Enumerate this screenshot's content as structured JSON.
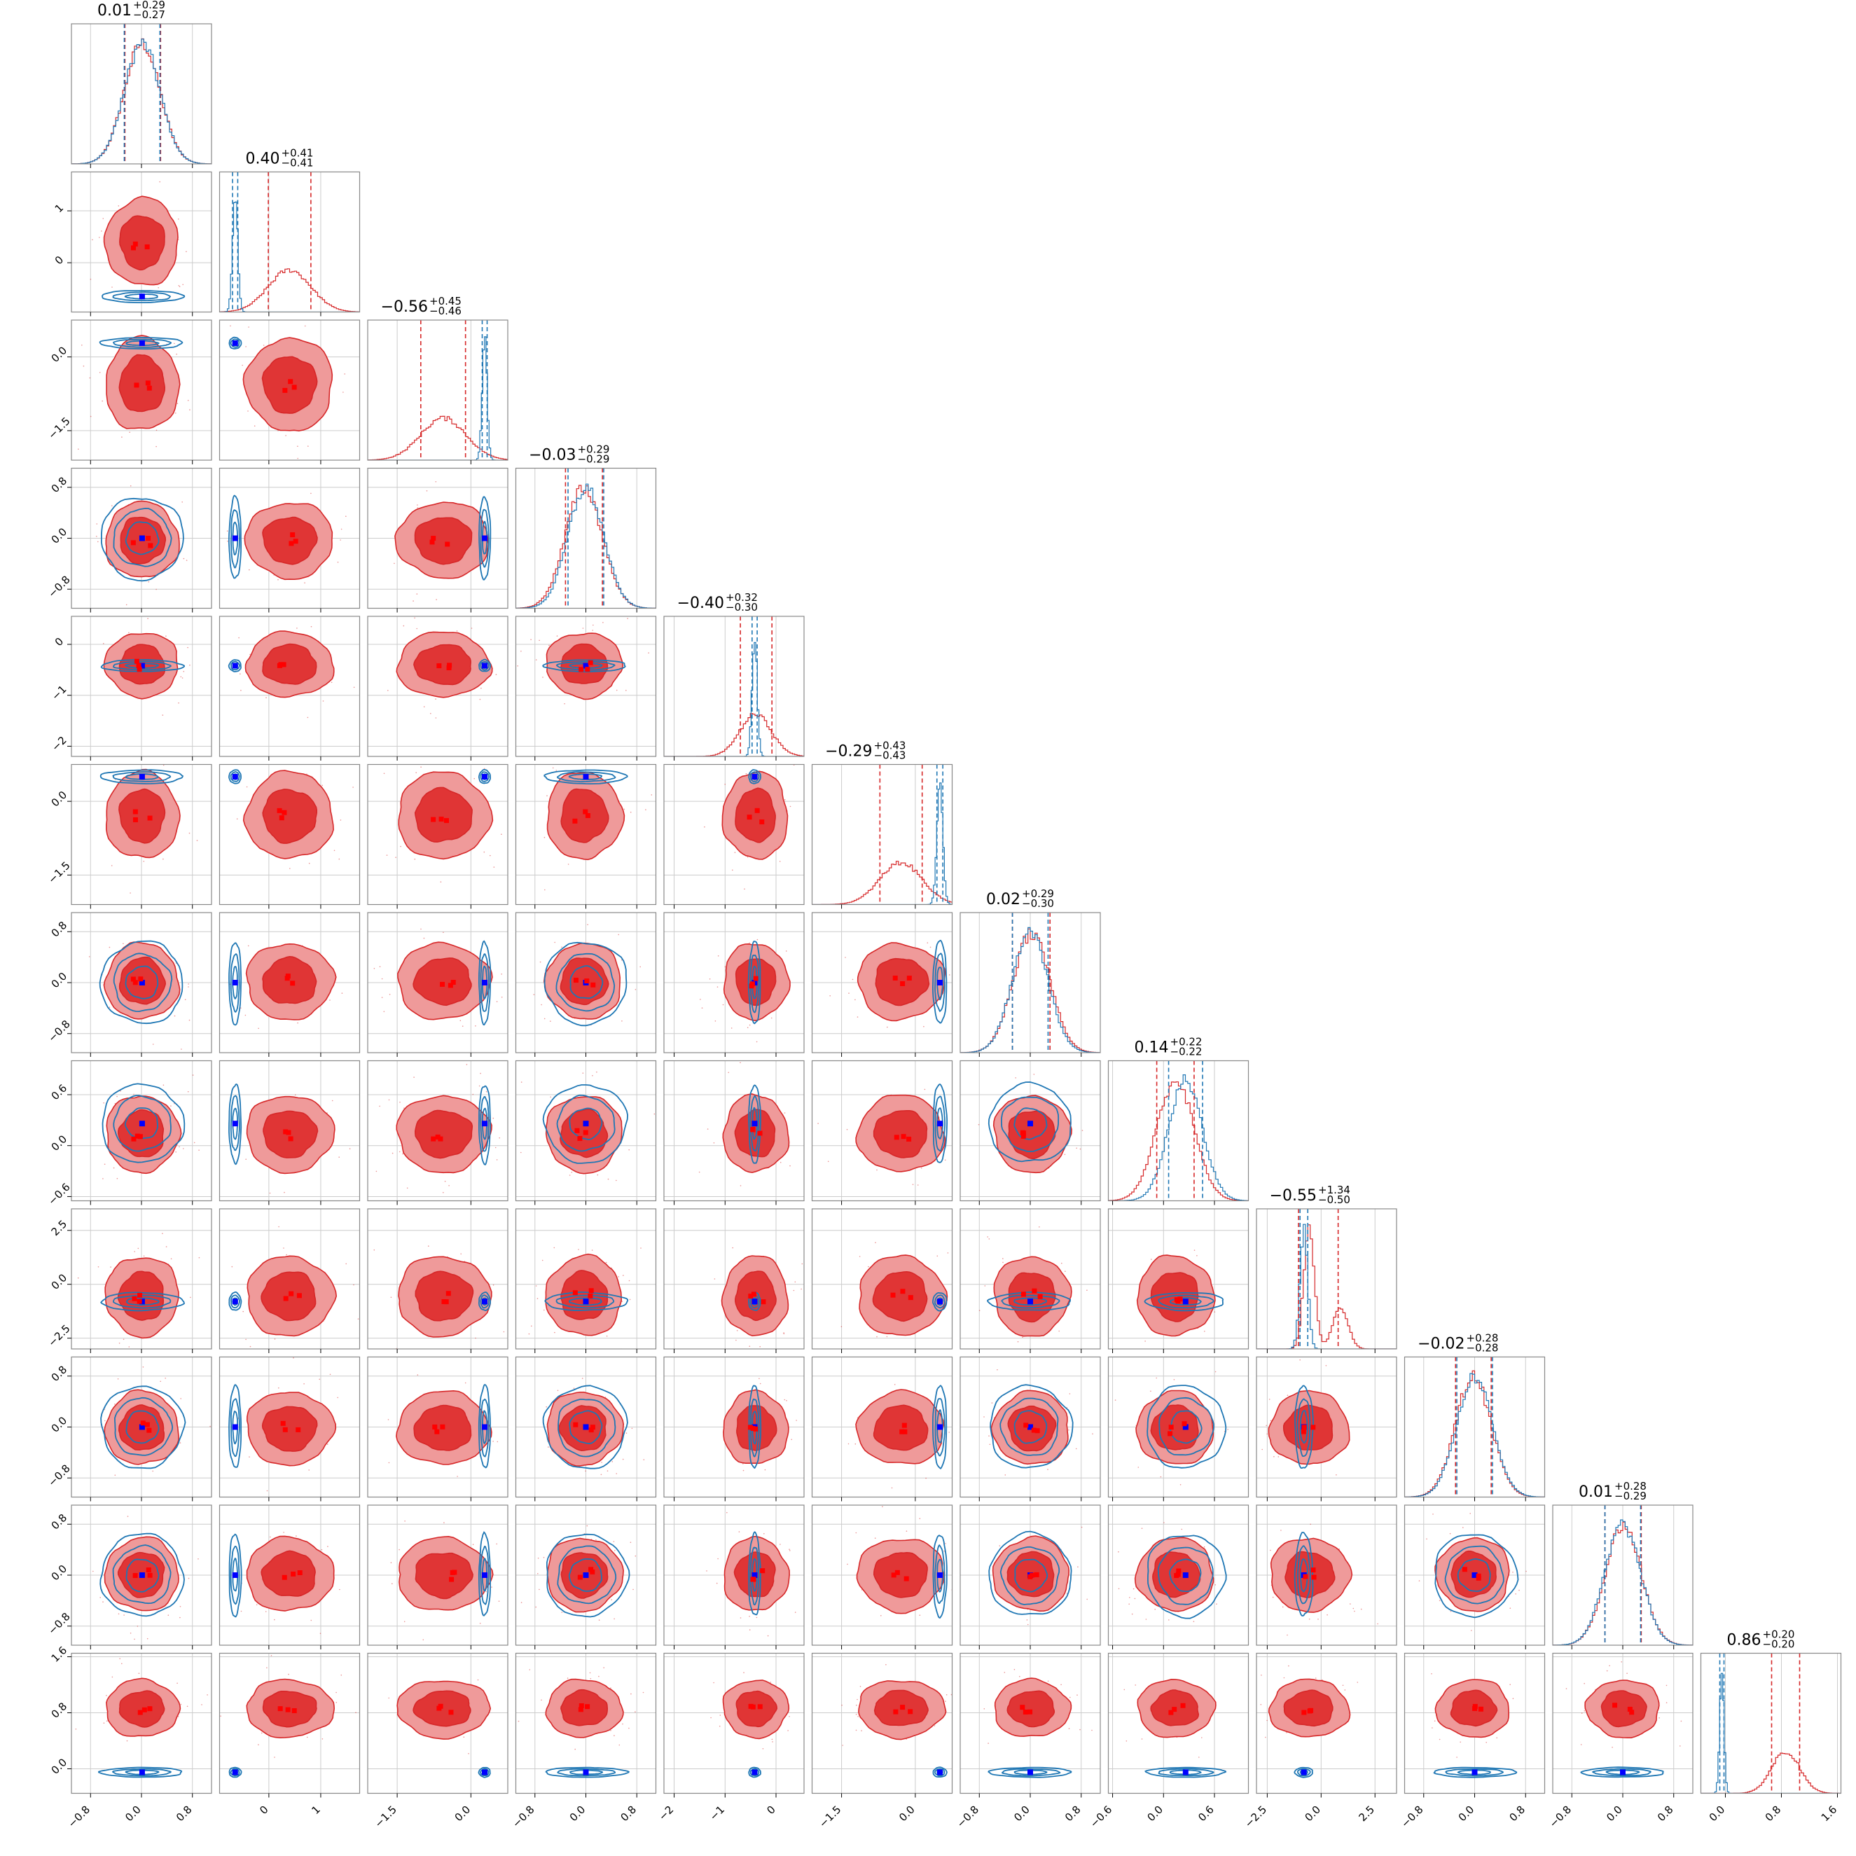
{
  "chart_data": {
    "type": "corner",
    "n_params": 12,
    "colors": {
      "red_fill_1": "#e03535",
      "red_fill_2": "#ef9a9a",
      "red_line": "#d62728",
      "blue_line": "#1f77b4",
      "blue_point": "#0000ff",
      "red_point": "#ff0000",
      "grid": "#cccccc",
      "frame": "#888888"
    },
    "params": [
      {
        "title": "0.01",
        "plus": "+0.29",
        "minus": "−0.27",
        "red_median": 0.01,
        "red_lo": 0.27,
        "red_hi": 0.29,
        "red_sigma": 0.28,
        "blue_median": 0.01,
        "blue_sigma": 0.28,
        "range": [
          -1.1,
          1.1
        ],
        "ticks": [
          -0.8,
          0.0,
          0.8
        ],
        "tick_labels": [
          "−0.8",
          "0.0",
          "0.8"
        ]
      },
      {
        "title": "0.40",
        "plus": "+0.41",
        "minus": "−0.41",
        "red_median": 0.4,
        "red_lo": 0.41,
        "red_hi": 0.41,
        "red_sigma": 0.41,
        "blue_median": -0.65,
        "blue_sigma": 0.05,
        "range": [
          -0.95,
          1.75
        ],
        "ticks": [
          0,
          1
        ],
        "tick_labels": [
          "0",
          "1"
        ]
      },
      {
        "title": "−0.56",
        "plus": "+0.45",
        "minus": "−0.46",
        "red_median": -0.56,
        "red_lo": 0.46,
        "red_hi": 0.45,
        "red_sigma": 0.46,
        "blue_median": 0.28,
        "blue_sigma": 0.05,
        "range": [
          -2.1,
          0.75
        ],
        "ticks": [
          -1.5,
          0.0
        ],
        "tick_labels": [
          "−1.5",
          "0.0"
        ]
      },
      {
        "title": "−0.03",
        "plus": "+0.29",
        "minus": "−0.29",
        "red_median": -0.03,
        "red_lo": 0.29,
        "red_hi": 0.29,
        "red_sigma": 0.29,
        "blue_median": 0.0,
        "blue_sigma": 0.28,
        "range": [
          -1.1,
          1.1
        ],
        "ticks": [
          -0.8,
          0.0,
          0.8
        ],
        "tick_labels": [
          "−0.8",
          "0.0",
          "0.8"
        ]
      },
      {
        "title": "−0.40",
        "plus": "+0.32",
        "minus": "−0.30",
        "red_median": -0.4,
        "red_lo": 0.3,
        "red_hi": 0.32,
        "red_sigma": 0.31,
        "blue_median": -0.42,
        "blue_sigma": 0.05,
        "range": [
          -2.2,
          0.55
        ],
        "ticks": [
          -2,
          -1,
          0
        ],
        "tick_labels": [
          "−2",
          "−1",
          "0"
        ]
      },
      {
        "title": "−0.29",
        "plus": "+0.43",
        "minus": "−0.43",
        "red_median": -0.29,
        "red_lo": 0.43,
        "red_hi": 0.43,
        "red_sigma": 0.43,
        "blue_median": 0.5,
        "blue_sigma": 0.06,
        "range": [
          -2.1,
          0.75
        ],
        "ticks": [
          -1.5,
          0.0
        ],
        "tick_labels": [
          "−1.5",
          "0.0"
        ]
      },
      {
        "title": "0.02",
        "plus": "+0.29",
        "minus": "−0.30",
        "red_median": 0.02,
        "red_lo": 0.3,
        "red_hi": 0.29,
        "red_sigma": 0.29,
        "blue_median": 0.0,
        "blue_sigma": 0.28,
        "range": [
          -1.1,
          1.1
        ],
        "ticks": [
          -0.8,
          0.0,
          0.8
        ],
        "tick_labels": [
          "−0.8",
          "0.0",
          "0.8"
        ]
      },
      {
        "title": "0.14",
        "plus": "+0.22",
        "minus": "−0.22",
        "red_median": 0.14,
        "red_lo": 0.22,
        "red_hi": 0.22,
        "red_sigma": 0.22,
        "blue_median": 0.26,
        "blue_sigma": 0.2,
        "range": [
          -0.65,
          1.0
        ],
        "ticks": [
          -0.6,
          0.0,
          0.6
        ],
        "tick_labels": [
          "−0.6",
          "0.0",
          "0.6"
        ]
      },
      {
        "title": "−0.55",
        "plus": "+1.34",
        "minus": "−0.50",
        "red_median": -0.55,
        "red_lo": 0.5,
        "red_hi": 1.34,
        "red_sigma": 0.9,
        "blue_median": -0.8,
        "blue_sigma": 0.18,
        "range": [
          -3.0,
          3.5
        ],
        "ticks": [
          -2.5,
          0.0,
          2.5
        ],
        "tick_labels": [
          "−2.5",
          "0.0",
          "2.5"
        ]
      },
      {
        "title": "−0.02",
        "plus": "+0.28",
        "minus": "−0.28",
        "red_median": -0.02,
        "red_lo": 0.28,
        "red_hi": 0.28,
        "red_sigma": 0.28,
        "blue_median": 0.0,
        "blue_sigma": 0.28,
        "range": [
          -1.1,
          1.1
        ],
        "ticks": [
          -0.8,
          0.0,
          0.8
        ],
        "tick_labels": [
          "−0.8",
          "0.0",
          "0.8"
        ]
      },
      {
        "title": "0.01",
        "plus": "+0.28",
        "minus": "−0.29",
        "red_median": 0.01,
        "red_lo": 0.29,
        "red_hi": 0.28,
        "red_sigma": 0.28,
        "blue_median": 0.0,
        "blue_sigma": 0.28,
        "range": [
          -1.1,
          1.1
        ],
        "ticks": [
          -0.8,
          0.0,
          0.8
        ],
        "tick_labels": [
          "−0.8",
          "0.0",
          "0.8"
        ]
      },
      {
        "title": "0.86",
        "plus": "+0.20",
        "minus": "−0.20",
        "red_median": 0.86,
        "red_lo": 0.2,
        "red_hi": 0.2,
        "red_sigma": 0.2,
        "blue_median": -0.05,
        "blue_sigma": 0.03,
        "range": [
          -0.35,
          1.65
        ],
        "ticks": [
          0.0,
          0.8,
          1.6
        ],
        "tick_labels": [
          "0.0",
          "0.8",
          "1.6"
        ]
      }
    ]
  }
}
